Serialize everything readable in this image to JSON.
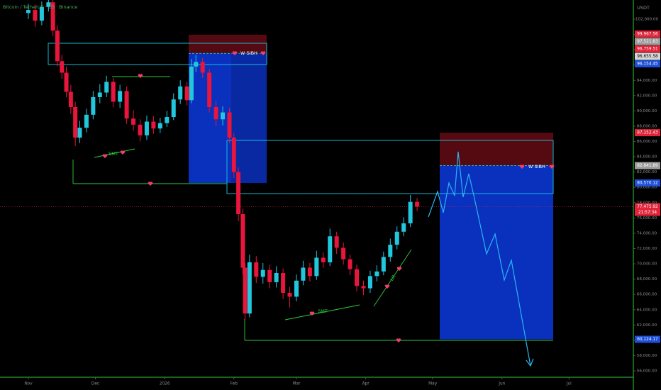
{
  "chart_data": {
    "type": "candlestick",
    "title": "Bitcoin / TetherUS · 1D · Binance",
    "x": [
      0,
      3,
      6,
      9,
      11,
      13,
      15,
      17,
      19,
      21,
      23,
      26,
      29,
      32,
      35,
      38,
      41,
      44,
      47,
      50,
      53,
      56,
      59,
      62,
      65,
      68,
      71,
      73,
      75,
      78,
      81,
      84,
      87,
      90,
      92,
      94,
      96,
      97,
      99,
      102,
      105,
      108,
      111,
      114,
      117,
      120,
      123,
      126,
      129,
      132,
      135,
      138,
      141,
      144,
      147,
      150,
      153,
      156,
      159,
      162,
      165,
      168,
      171,
      174
    ],
    "open": [
      102800,
      103200,
      101800,
      103600,
      104200,
      100500,
      96500,
      95000,
      92500,
      90500,
      86500,
      87800,
      89500,
      91800,
      92400,
      93800,
      91200,
      92600,
      89000,
      88200,
      86800,
      88600,
      87700,
      88400,
      89200,
      91500,
      93200,
      91400,
      95800,
      96400,
      95000,
      90500,
      88900,
      89800,
      86500,
      82000,
      76500,
      69500,
      63500,
      70200,
      68300,
      69200,
      67600,
      68800,
      66200,
      65700,
      67800,
      69500,
      68400,
      70800,
      70200,
      73600,
      72100,
      70600,
      69300,
      67100,
      66800,
      68400,
      69000,
      70900,
      72500,
      74200,
      75300,
      78100
    ],
    "high": [
      104000,
      103900,
      104300,
      104900,
      104600,
      101200,
      97300,
      95800,
      93400,
      91200,
      88700,
      90300,
      92600,
      93500,
      94600,
      94300,
      93400,
      93200,
      90100,
      88900,
      89400,
      89300,
      89100,
      90000,
      92300,
      94000,
      93800,
      96800,
      97300,
      96900,
      95500,
      91300,
      90600,
      90400,
      87100,
      82600,
      77200,
      70100,
      71200,
      71000,
      70100,
      69900,
      69700,
      69400,
      67000,
      68600,
      70400,
      70100,
      71700,
      71500,
      74600,
      74200,
      72800,
      71200,
      69900,
      67800,
      69100,
      69800,
      71600,
      73300,
      74900,
      76100,
      79000,
      78600
    ],
    "low": [
      102000,
      101000,
      101200,
      103000,
      99800,
      95800,
      94200,
      91800,
      89600,
      85400,
      85800,
      87200,
      88900,
      91000,
      91800,
      90500,
      90400,
      88300,
      87400,
      86000,
      86200,
      87000,
      87100,
      87900,
      88800,
      90900,
      90700,
      91000,
      95100,
      94300,
      89800,
      88000,
      88100,
      85800,
      81200,
      75600,
      68600,
      62600,
      63000,
      67500,
      67400,
      66800,
      66900,
      65400,
      64300,
      65100,
      67200,
      67700,
      67900,
      69500,
      69700,
      71300,
      69900,
      68500,
      66400,
      65900,
      66200,
      67700,
      68500,
      70300,
      71900,
      73600,
      74800,
      76900
    ],
    "close": [
      103200,
      101800,
      103600,
      104200,
      100500,
      96500,
      95000,
      92500,
      90500,
      86500,
      87800,
      89500,
      91800,
      92400,
      93800,
      91200,
      92600,
      89000,
      88200,
      86800,
      88600,
      87700,
      88400,
      89200,
      91500,
      93200,
      91400,
      95800,
      96400,
      95000,
      90500,
      88900,
      89800,
      86500,
      82000,
      76500,
      69500,
      63500,
      70200,
      68300,
      69200,
      67600,
      68800,
      66200,
      65700,
      67800,
      69500,
      68400,
      70800,
      70200,
      73600,
      72100,
      70600,
      69300,
      67100,
      66800,
      68400,
      69000,
      70900,
      72500,
      74200,
      75300,
      78100,
      77475.92
    ],
    "up_color": "#22c7dd",
    "down_color": "#e8153c",
    "xlim": [
      -12.7,
      270.8
    ],
    "ylim": [
      55167,
      104504
    ],
    "xticks": [
      {
        "value": 0,
        "label": "Nov"
      },
      {
        "value": 30,
        "label": "Dec"
      },
      {
        "value": 61,
        "label": "2026"
      },
      {
        "value": 92,
        "label": "Feb"
      },
      {
        "value": 120,
        "label": "Mar"
      },
      {
        "value": 151,
        "label": "Apr"
      },
      {
        "value": 181,
        "label": "May"
      },
      {
        "value": 212,
        "label": "Jun"
      },
      {
        "value": 242,
        "label": "Jul"
      }
    ],
    "yticks": [
      {
        "value": 56000,
        "label": "56,000.00"
      },
      {
        "value": 58000,
        "label": "58,000.00"
      },
      {
        "value": 60000,
        "label": "60,000.00"
      },
      {
        "value": 62000,
        "label": "62,000.00"
      },
      {
        "value": 64000,
        "label": "64,000.00"
      },
      {
        "value": 66000,
        "label": "66,000.00"
      },
      {
        "value": 68000,
        "label": "68,000.00"
      },
      {
        "value": 70000,
        "label": "70,000.00"
      },
      {
        "value": 72000,
        "label": "72,000.00"
      },
      {
        "value": 74000,
        "label": "74,000.00"
      },
      {
        "value": 76000,
        "label": "76,000.00"
      },
      {
        "value": 78000,
        "label": "78,000.00"
      },
      {
        "value": 80000,
        "label": "80,000.00"
      },
      {
        "value": 82000,
        "label": "82,000.00"
      },
      {
        "value": 84000,
        "label": "84,000.00"
      },
      {
        "value": 86000,
        "label": "86,000.00"
      },
      {
        "value": 88000,
        "label": "88,000.00"
      },
      {
        "value": 90000,
        "label": "90,000.00"
      },
      {
        "value": 92000,
        "label": "92,000.00"
      },
      {
        "value": 94000,
        "label": "94,000.00"
      },
      {
        "value": 96000,
        "label": "96,000.00"
      },
      {
        "value": 98000,
        "label": "98,000.00"
      },
      {
        "value": 100000,
        "label": "100,000.00"
      },
      {
        "value": 102000,
        "label": "102,000.00"
      }
    ],
    "price_axis_unit": "USDT",
    "price_labels": [
      {
        "value": 99967.56,
        "label": "99,967.56",
        "color": "#e0243a"
      },
      {
        "value": 97521.83,
        "label": "97,521.83",
        "color": "#9e9e9e"
      },
      {
        "value": 96759.51,
        "label": "96,759.51",
        "color": "#e0243a"
      },
      {
        "value": 96655.58,
        "label": "96,655.58",
        "color": "#d6d6d6"
      },
      {
        "value": 96154.45,
        "label": "96,154.45",
        "color": "#1d4fd8"
      },
      {
        "value": 87152.43,
        "label": "87,152.43",
        "color": "#e0243a"
      },
      {
        "value": 82841.89,
        "label": "82,841.89",
        "color": "#9e9e9e"
      },
      {
        "value": 80570.12,
        "label": "80,570.12",
        "color": "#1d4fd8"
      },
      {
        "value": 77475.92,
        "label": "77,475.92",
        "color": "#e0243a"
      },
      {
        "value": 60124.17,
        "label": "60,124.17",
        "color": "#1d4fd8"
      }
    ],
    "countdown": "21:57:34",
    "annotations": [
      "W SIBH",
      "W SIBH",
      "SMT",
      "SMT",
      "LR"
    ]
  }
}
